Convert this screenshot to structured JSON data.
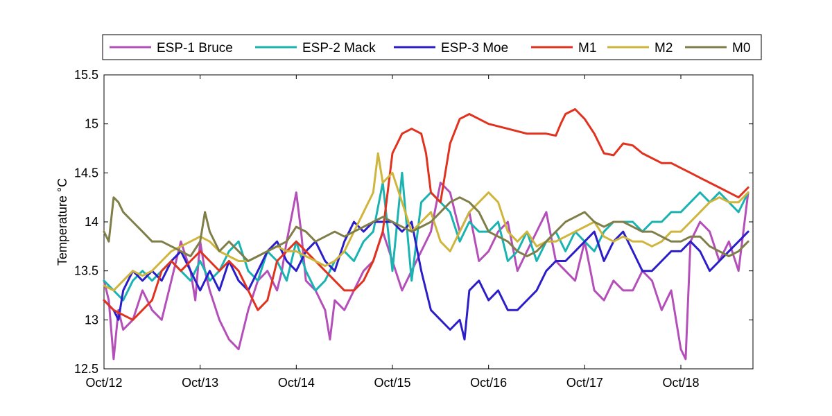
{
  "chart_data": {
    "type": "line",
    "xlabel": "",
    "ylabel": "Temperature °C",
    "xlim": [
      0,
      6.75
    ],
    "ylim": [
      12.5,
      15.5
    ],
    "xticks": [
      {
        "value": 0,
        "label": "Oct/12"
      },
      {
        "value": 1,
        "label": "Oct/13"
      },
      {
        "value": 2,
        "label": "Oct/14"
      },
      {
        "value": 3,
        "label": "Oct/15"
      },
      {
        "value": 4,
        "label": "Oct/16"
      },
      {
        "value": 5,
        "label": "Oct/17"
      },
      {
        "value": 6,
        "label": "Oct/18"
      }
    ],
    "yticks": [
      {
        "value": 12.5,
        "label": "12.5"
      },
      {
        "value": 13,
        "label": "13"
      },
      {
        "value": 13.5,
        "label": "13.5"
      },
      {
        "value": 14,
        "label": "14"
      },
      {
        "value": 14.5,
        "label": "14.5"
      },
      {
        "value": 15,
        "label": "15"
      },
      {
        "value": 15.5,
        "label": "15.5"
      }
    ],
    "grid": false,
    "legend_position": "top",
    "series": [
      {
        "name": "ESP-1 Bruce",
        "color": "#b44fb9",
        "x": [
          0.0,
          0.05,
          0.1,
          0.15,
          0.2,
          0.3,
          0.4,
          0.5,
          0.6,
          0.7,
          0.8,
          0.9,
          0.95,
          1.0,
          1.05,
          1.1,
          1.2,
          1.3,
          1.4,
          1.5,
          1.6,
          1.7,
          1.8,
          1.85,
          1.9,
          2.0,
          2.05,
          2.1,
          2.2,
          2.3,
          2.35,
          2.4,
          2.5,
          2.6,
          2.7,
          2.8,
          2.9,
          3.0,
          3.1,
          3.2,
          3.3,
          3.4,
          3.5,
          3.6,
          3.7,
          3.8,
          3.9,
          4.0,
          4.1,
          4.2,
          4.3,
          4.4,
          4.5,
          4.6,
          4.7,
          4.8,
          4.9,
          5.0,
          5.1,
          5.2,
          5.3,
          5.4,
          5.5,
          5.6,
          5.7,
          5.8,
          5.9,
          6.0,
          6.05,
          6.1,
          6.2,
          6.3,
          6.4,
          6.5,
          6.6,
          6.7
        ],
        "y": [
          13.4,
          13.2,
          12.6,
          13.1,
          12.9,
          13.0,
          13.3,
          13.1,
          13.0,
          13.4,
          13.8,
          13.5,
          13.2,
          13.8,
          13.5,
          13.3,
          13.0,
          12.8,
          12.7,
          13.1,
          13.4,
          13.5,
          13.3,
          13.5,
          13.8,
          14.3,
          13.9,
          13.4,
          13.3,
          13.1,
          12.8,
          13.2,
          13.1,
          13.3,
          13.5,
          13.6,
          13.9,
          13.6,
          13.3,
          13.5,
          13.7,
          13.9,
          14.4,
          14.3,
          13.9,
          14.1,
          13.6,
          13.7,
          13.9,
          14.0,
          13.5,
          13.7,
          13.9,
          14.1,
          13.6,
          13.5,
          13.4,
          13.8,
          13.3,
          13.2,
          13.4,
          13.3,
          13.3,
          13.5,
          13.4,
          13.1,
          13.3,
          12.7,
          12.6,
          13.8,
          14.0,
          13.9,
          13.6,
          13.8,
          13.5,
          14.3
        ]
      },
      {
        "name": "ESP-2 Mack",
        "color": "#19b3b1",
        "x": [
          0.0,
          0.1,
          0.2,
          0.3,
          0.4,
          0.5,
          0.6,
          0.7,
          0.8,
          0.9,
          1.0,
          1.1,
          1.2,
          1.3,
          1.4,
          1.5,
          1.6,
          1.7,
          1.8,
          1.9,
          2.0,
          2.1,
          2.2,
          2.3,
          2.4,
          2.5,
          2.6,
          2.7,
          2.8,
          2.9,
          3.0,
          3.1,
          3.2,
          3.3,
          3.4,
          3.5,
          3.6,
          3.7,
          3.8,
          3.9,
          4.0,
          4.1,
          4.2,
          4.3,
          4.4,
          4.5,
          4.6,
          4.7,
          4.8,
          4.9,
          5.0,
          5.1,
          5.2,
          5.3,
          5.4,
          5.5,
          5.6,
          5.7,
          5.8,
          5.9,
          6.0,
          6.1,
          6.2,
          6.3,
          6.4,
          6.5,
          6.6,
          6.7
        ],
        "y": [
          13.4,
          13.3,
          13.2,
          13.4,
          13.5,
          13.4,
          13.5,
          13.6,
          13.5,
          13.4,
          13.6,
          13.4,
          13.5,
          13.7,
          13.8,
          13.5,
          13.4,
          13.7,
          13.6,
          13.4,
          13.8,
          13.5,
          13.3,
          13.4,
          13.6,
          13.7,
          13.6,
          13.8,
          13.9,
          14.4,
          13.5,
          14.5,
          13.4,
          14.2,
          14.3,
          14.2,
          14.1,
          13.8,
          14.0,
          13.9,
          13.9,
          14.0,
          13.6,
          13.7,
          13.9,
          13.6,
          13.8,
          13.9,
          13.7,
          13.9,
          13.8,
          13.7,
          13.9,
          14.0,
          14.0,
          14.0,
          13.9,
          14.0,
          14.0,
          14.1,
          14.1,
          14.2,
          14.3,
          14.2,
          14.3,
          14.2,
          14.1,
          14.3
        ]
      },
      {
        "name": "ESP-3 Moe",
        "color": "#2b1ec9",
        "x": [
          0.0,
          0.1,
          0.15,
          0.2,
          0.3,
          0.4,
          0.5,
          0.6,
          0.7,
          0.8,
          0.9,
          1.0,
          1.1,
          1.2,
          1.3,
          1.4,
          1.5,
          1.6,
          1.7,
          1.8,
          1.9,
          2.0,
          2.1,
          2.2,
          2.3,
          2.4,
          2.5,
          2.6,
          2.7,
          2.8,
          2.9,
          3.0,
          3.1,
          3.2,
          3.3,
          3.4,
          3.5,
          3.6,
          3.7,
          3.75,
          3.8,
          3.9,
          4.0,
          4.1,
          4.2,
          4.3,
          4.4,
          4.5,
          4.6,
          4.7,
          4.8,
          4.9,
          5.0,
          5.1,
          5.2,
          5.3,
          5.4,
          5.5,
          5.6,
          5.7,
          5.8,
          5.9,
          6.0,
          6.1,
          6.2,
          6.3,
          6.4,
          6.5,
          6.6,
          6.7
        ],
        "y": [
          13.2,
          13.1,
          13.0,
          13.3,
          13.5,
          13.4,
          13.5,
          13.4,
          13.6,
          13.7,
          13.5,
          13.3,
          13.5,
          13.3,
          13.6,
          13.4,
          13.3,
          13.5,
          13.7,
          13.8,
          13.6,
          13.5,
          13.7,
          13.8,
          13.6,
          13.5,
          13.8,
          14.0,
          13.9,
          14.0,
          14.0,
          14.0,
          13.9,
          14.0,
          13.5,
          13.1,
          13.0,
          12.9,
          13.0,
          12.8,
          13.3,
          13.4,
          13.2,
          13.3,
          13.1,
          13.1,
          13.2,
          13.3,
          13.5,
          13.6,
          13.6,
          13.7,
          13.8,
          13.9,
          13.6,
          13.8,
          13.9,
          13.7,
          13.5,
          13.5,
          13.6,
          13.7,
          13.7,
          13.8,
          13.7,
          13.5,
          13.6,
          13.7,
          13.8,
          13.9
        ]
      },
      {
        "name": "M1",
        "color": "#e0321e",
        "x": [
          0.0,
          0.1,
          0.2,
          0.3,
          0.4,
          0.5,
          0.6,
          0.7,
          0.8,
          0.9,
          1.0,
          1.1,
          1.2,
          1.3,
          1.4,
          1.5,
          1.6,
          1.7,
          1.8,
          1.9,
          2.0,
          2.1,
          2.2,
          2.3,
          2.4,
          2.5,
          2.6,
          2.7,
          2.8,
          2.9,
          2.95,
          3.0,
          3.1,
          3.2,
          3.3,
          3.35,
          3.4,
          3.5,
          3.6,
          3.7,
          3.8,
          3.9,
          4.0,
          4.2,
          4.4,
          4.6,
          4.7,
          4.75,
          4.8,
          4.9,
          5.0,
          5.1,
          5.2,
          5.3,
          5.4,
          5.5,
          5.6,
          5.7,
          5.8,
          5.9,
          6.0,
          6.1,
          6.2,
          6.3,
          6.4,
          6.5,
          6.6,
          6.7
        ],
        "y": [
          13.2,
          13.1,
          13.05,
          13.0,
          13.1,
          13.2,
          13.5,
          13.6,
          13.5,
          13.6,
          13.7,
          13.6,
          13.5,
          13.6,
          13.5,
          13.3,
          13.1,
          13.2,
          13.6,
          13.7,
          13.8,
          13.7,
          13.6,
          13.5,
          13.4,
          13.3,
          13.3,
          13.4,
          13.6,
          13.9,
          14.3,
          14.7,
          14.9,
          14.95,
          14.9,
          14.7,
          14.3,
          14.2,
          14.8,
          15.05,
          15.1,
          15.05,
          15.0,
          14.95,
          14.9,
          14.9,
          14.88,
          15.0,
          15.1,
          15.15,
          15.05,
          14.9,
          14.7,
          14.68,
          14.8,
          14.78,
          14.7,
          14.65,
          14.6,
          14.6,
          14.55,
          14.5,
          14.45,
          14.4,
          14.35,
          14.3,
          14.25,
          14.35
        ]
      },
      {
        "name": "M2",
        "color": "#cfb53b",
        "x": [
          0.0,
          0.1,
          0.2,
          0.3,
          0.4,
          0.5,
          0.6,
          0.7,
          0.8,
          0.9,
          1.0,
          1.1,
          1.2,
          1.3,
          1.4,
          1.5,
          1.6,
          1.7,
          1.8,
          1.9,
          2.0,
          2.1,
          2.2,
          2.3,
          2.4,
          2.5,
          2.6,
          2.7,
          2.8,
          2.85,
          2.9,
          3.0,
          3.1,
          3.2,
          3.3,
          3.4,
          3.5,
          3.6,
          3.7,
          3.8,
          3.9,
          4.0,
          4.1,
          4.2,
          4.3,
          4.4,
          4.5,
          4.6,
          4.7,
          4.8,
          4.9,
          5.0,
          5.1,
          5.2,
          5.3,
          5.4,
          5.5,
          5.6,
          5.7,
          5.8,
          5.9,
          6.0,
          6.1,
          6.2,
          6.3,
          6.4,
          6.5,
          6.6,
          6.7
        ],
        "y": [
          13.35,
          13.3,
          13.4,
          13.5,
          13.45,
          13.5,
          13.6,
          13.7,
          13.75,
          13.8,
          13.85,
          13.8,
          13.7,
          13.65,
          13.6,
          13.6,
          13.65,
          13.7,
          13.75,
          13.7,
          13.7,
          13.65,
          13.6,
          13.55,
          13.6,
          13.7,
          13.9,
          14.1,
          14.3,
          14.7,
          14.4,
          14.5,
          14.2,
          13.9,
          14.0,
          14.1,
          13.8,
          13.7,
          13.9,
          14.1,
          14.2,
          14.3,
          14.2,
          13.9,
          13.8,
          13.9,
          13.75,
          13.8,
          13.8,
          13.85,
          13.9,
          13.95,
          14.0,
          13.85,
          13.8,
          13.85,
          13.8,
          13.8,
          13.75,
          13.8,
          13.9,
          13.9,
          14.0,
          14.1,
          14.2,
          14.25,
          14.2,
          14.2,
          14.3
        ]
      },
      {
        "name": "M0",
        "color": "#7f7e49",
        "x": [
          0.0,
          0.05,
          0.1,
          0.15,
          0.2,
          0.3,
          0.4,
          0.5,
          0.6,
          0.7,
          0.8,
          0.9,
          1.0,
          1.05,
          1.1,
          1.2,
          1.3,
          1.4,
          1.5,
          1.6,
          1.7,
          1.8,
          1.9,
          2.0,
          2.1,
          2.2,
          2.3,
          2.4,
          2.5,
          2.6,
          2.7,
          2.8,
          2.9,
          3.0,
          3.1,
          3.2,
          3.3,
          3.4,
          3.5,
          3.6,
          3.7,
          3.8,
          3.9,
          4.0,
          4.1,
          4.2,
          4.3,
          4.4,
          4.5,
          4.6,
          4.7,
          4.8,
          4.9,
          5.0,
          5.1,
          5.2,
          5.3,
          5.4,
          5.5,
          5.6,
          5.7,
          5.8,
          5.9,
          6.0,
          6.1,
          6.2,
          6.3,
          6.4,
          6.5,
          6.6,
          6.7
        ],
        "y": [
          13.9,
          13.8,
          14.25,
          14.2,
          14.1,
          14.0,
          13.9,
          13.8,
          13.8,
          13.75,
          13.7,
          13.65,
          13.8,
          14.1,
          13.9,
          13.7,
          13.8,
          13.7,
          13.6,
          13.65,
          13.7,
          13.75,
          13.8,
          13.95,
          13.9,
          13.8,
          13.85,
          13.9,
          13.85,
          13.9,
          13.95,
          14.0,
          14.05,
          14.0,
          13.95,
          13.9,
          13.95,
          14.0,
          14.1,
          14.2,
          14.25,
          14.2,
          14.1,
          13.9,
          13.85,
          13.8,
          13.7,
          13.65,
          13.7,
          13.8,
          13.9,
          14.0,
          14.05,
          14.1,
          14.0,
          13.95,
          14.0,
          14.0,
          13.95,
          13.9,
          13.9,
          13.85,
          13.8,
          13.8,
          13.85,
          13.85,
          13.75,
          13.7,
          13.65,
          13.7,
          13.8
        ]
      }
    ]
  }
}
